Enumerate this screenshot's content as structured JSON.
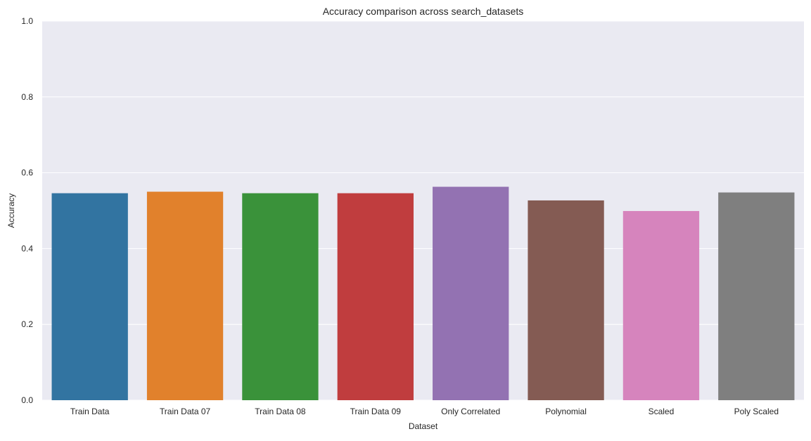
{
  "chart_data": {
    "type": "bar",
    "title": "Accuracy comparison across search_datasets",
    "xlabel": "Dataset",
    "ylabel": "Accuracy",
    "ylim": [
      0,
      1.0
    ],
    "yticks": [
      "0.0",
      "0.2",
      "0.4",
      "0.6",
      "0.8",
      "1.0"
    ],
    "ytick_values": [
      0,
      0.2,
      0.4,
      0.6,
      0.8,
      1.0
    ],
    "grid": true,
    "background_color": "#eaeaf2",
    "categories": [
      "Train Data",
      "Train Data 07",
      "Train Data 08",
      "Train Data 09",
      "Only Correlated",
      "Polynomial",
      "Scaled",
      "Poly Scaled"
    ],
    "values": [
      0.546,
      0.55,
      0.546,
      0.546,
      0.563,
      0.527,
      0.499,
      0.548
    ],
    "colors": [
      "#3274a1",
      "#e1812c",
      "#3a923a",
      "#c03d3e",
      "#9372b2",
      "#845b53",
      "#d684bd",
      "#7f7f7f"
    ]
  }
}
